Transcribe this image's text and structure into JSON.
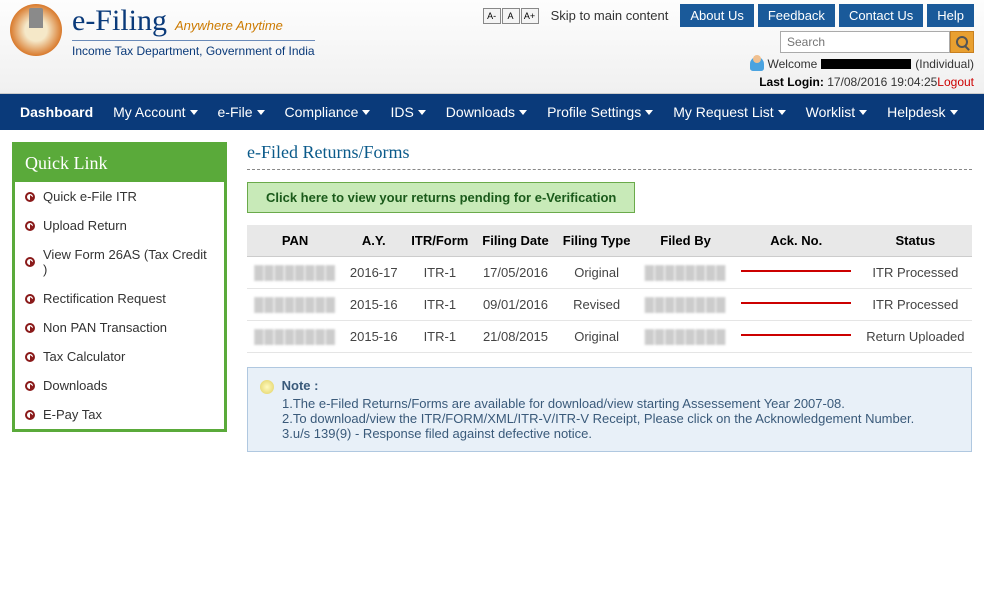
{
  "header": {
    "brand_main": "e-Filing",
    "brand_tagline": "Anywhere Anytime",
    "brand_sub": "Income Tax Department, Government of India",
    "font_buttons": [
      "A-",
      "A",
      "A+"
    ],
    "skip_link": "Skip to main content",
    "top_buttons": [
      "About Us",
      "Feedback",
      "Contact Us",
      "Help"
    ],
    "search_placeholder": "Search",
    "welcome_prefix": "Welcome ",
    "user_type": " (Individual)",
    "last_login_label": "Last Login: ",
    "last_login_value": "17/08/2016 19:04:25",
    "logout": "Logout"
  },
  "nav": [
    {
      "label": "Dashboard",
      "dropdown": false
    },
    {
      "label": "My Account",
      "dropdown": true
    },
    {
      "label": "e-File",
      "dropdown": true
    },
    {
      "label": "Compliance",
      "dropdown": true
    },
    {
      "label": "IDS",
      "dropdown": true
    },
    {
      "label": "Downloads",
      "dropdown": true
    },
    {
      "label": "Profile Settings",
      "dropdown": true
    },
    {
      "label": "My Request List",
      "dropdown": true
    },
    {
      "label": "Worklist",
      "dropdown": true
    },
    {
      "label": "Helpdesk",
      "dropdown": true
    }
  ],
  "sidebar": {
    "title": "Quick Link",
    "items": [
      "Quick e-File ITR",
      "Upload Return",
      "View Form 26AS (Tax Credit )",
      "Rectification Request",
      "Non PAN Transaction",
      "Tax Calculator",
      "Downloads",
      "E-Pay Tax"
    ]
  },
  "main": {
    "title": "e-Filed Returns/Forms",
    "verify_button": "Click here to view your returns pending for e-Verification",
    "table": {
      "headers": [
        "PAN",
        "A.Y.",
        "ITR/Form",
        "Filing Date",
        "Filing Type",
        "Filed By",
        "Ack. No.",
        "Status"
      ],
      "rows": [
        {
          "pan": "████████",
          "ay": "2016-17",
          "form": "ITR-1",
          "date": "17/05/2016",
          "type": "Original",
          "filed_by": "████████",
          "ack": "████████████████",
          "status": "ITR Processed"
        },
        {
          "pan": "████████",
          "ay": "2015-16",
          "form": "ITR-1",
          "date": "09/01/2016",
          "type": "Revised",
          "filed_by": "████████",
          "ack": "████████████████",
          "status": "ITR Processed"
        },
        {
          "pan": "████████",
          "ay": "2015-16",
          "form": "ITR-1",
          "date": "21/08/2015",
          "type": "Original",
          "filed_by": "████████",
          "ack": "████████████████",
          "status": "Return Uploaded"
        }
      ]
    },
    "note": {
      "title": "Note :",
      "lines": [
        "1.The e-Filed Returns/Forms are available for download/view starting Assessement Year 2007-08.",
        "2.To download/view the ITR/FORM/XML/ITR-V/ITR-V Receipt, Please click on the Acknowledgement Number.",
        "3.u/s 139(9) - Response filed against defective notice."
      ]
    }
  }
}
